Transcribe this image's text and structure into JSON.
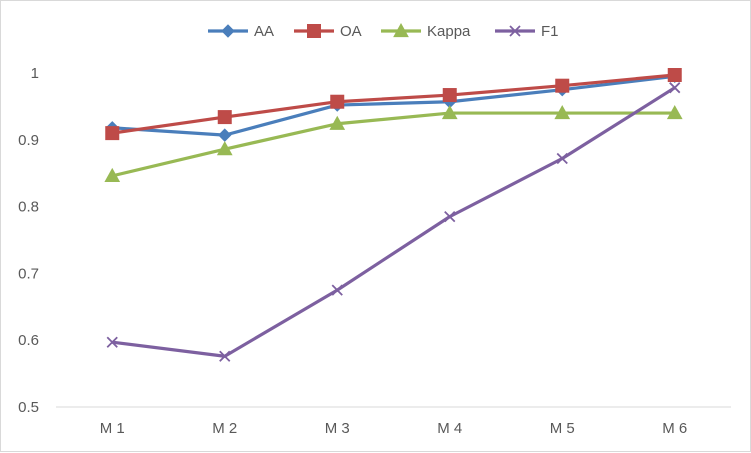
{
  "chart_data": {
    "type": "line",
    "title": "",
    "xlabel": "",
    "ylabel": "",
    "categories": [
      "M 1",
      "M 2",
      "M 3",
      "M 4",
      "M 5",
      "M 6"
    ],
    "ylim": [
      0.5,
      1
    ],
    "yticks": [
      0.5,
      0.6,
      0.7,
      0.8,
      0.9,
      1
    ],
    "ytick_labels": [
      "0.5",
      "0.6",
      "0.7",
      "0.8",
      "0.9",
      "1"
    ],
    "grid": false,
    "legend_position": "top",
    "series": [
      {
        "name": "AA",
        "color": "#4a7ebb",
        "marker": "diamond",
        "values": [
          0.918,
          0.907,
          0.952,
          0.957,
          0.975,
          0.995
        ]
      },
      {
        "name": "OA",
        "color": "#be4b48",
        "marker": "square",
        "values": [
          0.91,
          0.934,
          0.957,
          0.967,
          0.981,
          0.997
        ]
      },
      {
        "name": "Kappa",
        "color": "#98b954",
        "marker": "triangle",
        "values": [
          0.846,
          0.886,
          0.924,
          0.94,
          0.94,
          0.94
        ]
      },
      {
        "name": "F1",
        "color": "#7d60a0",
        "marker": "x",
        "values": [
          0.597,
          0.576,
          0.675,
          0.785,
          0.872,
          0.978
        ]
      }
    ]
  }
}
